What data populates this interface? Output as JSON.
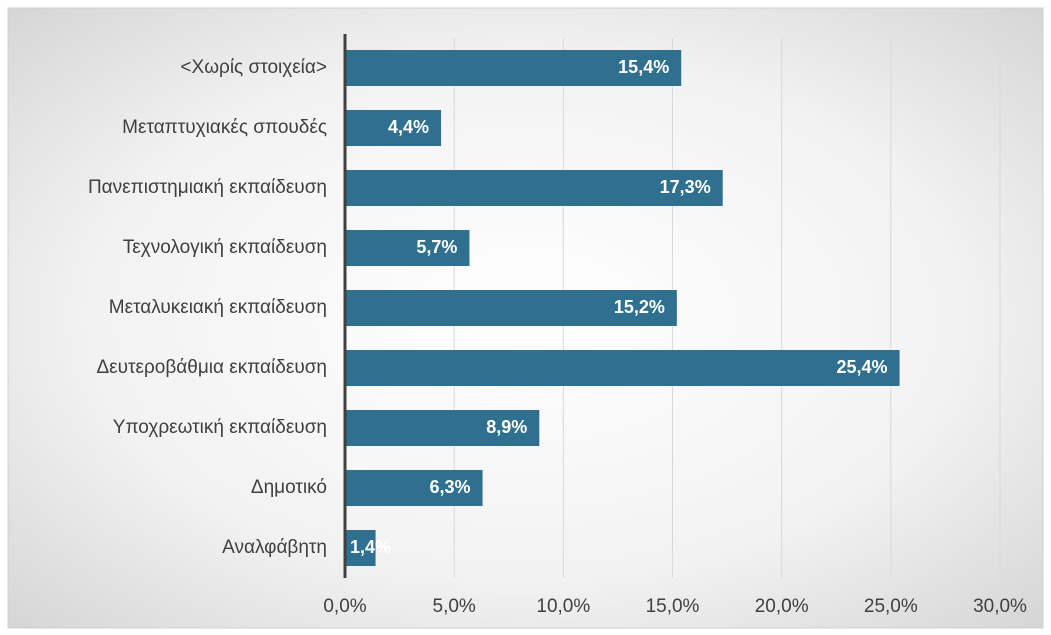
{
  "chart_data": {
    "type": "bar",
    "orientation": "horizontal",
    "categories": [
      "<Χωρίς στοιχεία>",
      "Μεταπτυχιακές σπουδές",
      "Πανεπιστημιακή εκπαίδευση",
      "Τεχνολογική εκπαίδευση",
      "Μεταλυκειακή εκπαίδευση",
      "Δευτεροβάθμια εκπαίδευση",
      "Υποχρεωτική εκπαίδευση",
      "Δημοτικό",
      "Αναλφάβητη"
    ],
    "values": [
      15.4,
      4.4,
      17.3,
      5.7,
      15.2,
      25.4,
      8.9,
      6.3,
      1.4
    ],
    "value_labels": [
      "15,4%",
      "4,4%",
      "17,3%",
      "5,7%",
      "15,2%",
      "25,4%",
      "8,9%",
      "6,3%",
      "1,4%"
    ],
    "color": "#2f6f8f",
    "xlim": [
      0,
      30
    ],
    "xticks": [
      {
        "value": 0,
        "label": "0,0%"
      },
      {
        "value": 5,
        "label": "5,0%"
      },
      {
        "value": 10,
        "label": "10,0%"
      },
      {
        "value": 15,
        "label": "15,0%"
      },
      {
        "value": 20,
        "label": "20,0%"
      },
      {
        "value": 25,
        "label": "25,0%"
      },
      {
        "value": 30,
        "label": "30,0%"
      }
    ],
    "grid": true
  }
}
